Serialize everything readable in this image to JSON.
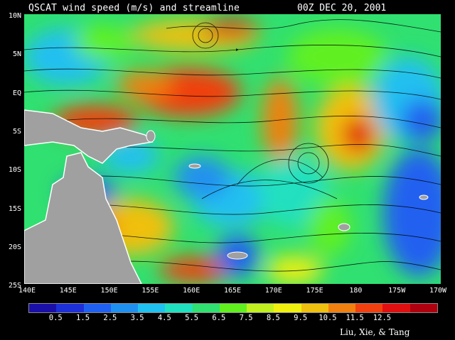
{
  "title": "QSCAT wind speed (m/s) and streamline",
  "datestamp": "00Z DEC 20, 2001",
  "credit": "Liu, Xie, & Tang",
  "latitude_labels": [
    "10N",
    "5N",
    "EQ",
    "5S",
    "10S",
    "15S",
    "20S",
    "25S"
  ],
  "longitude_labels": [
    "140E",
    "145E",
    "150E",
    "155E",
    "160E",
    "165E",
    "170E",
    "175E",
    "180",
    "175W",
    "170W"
  ],
  "colorbar": {
    "labels": [
      "0.5",
      "1.5",
      "2.5",
      "3.5",
      "4.5",
      "5.5",
      "6.5",
      "7.5",
      "8.5",
      "9.5",
      "10.5",
      "11.5",
      "12.5"
    ],
    "colors": [
      "#1a10a8",
      "#1e30d8",
      "#2060f0",
      "#2090f0",
      "#20c0f0",
      "#20e0c0",
      "#30e070",
      "#60f020",
      "#c0f020",
      "#f0f010",
      "#f0c010",
      "#f08010",
      "#f04010",
      "#e01010",
      "#b00010"
    ]
  },
  "land_color": "#a0a0a0"
}
